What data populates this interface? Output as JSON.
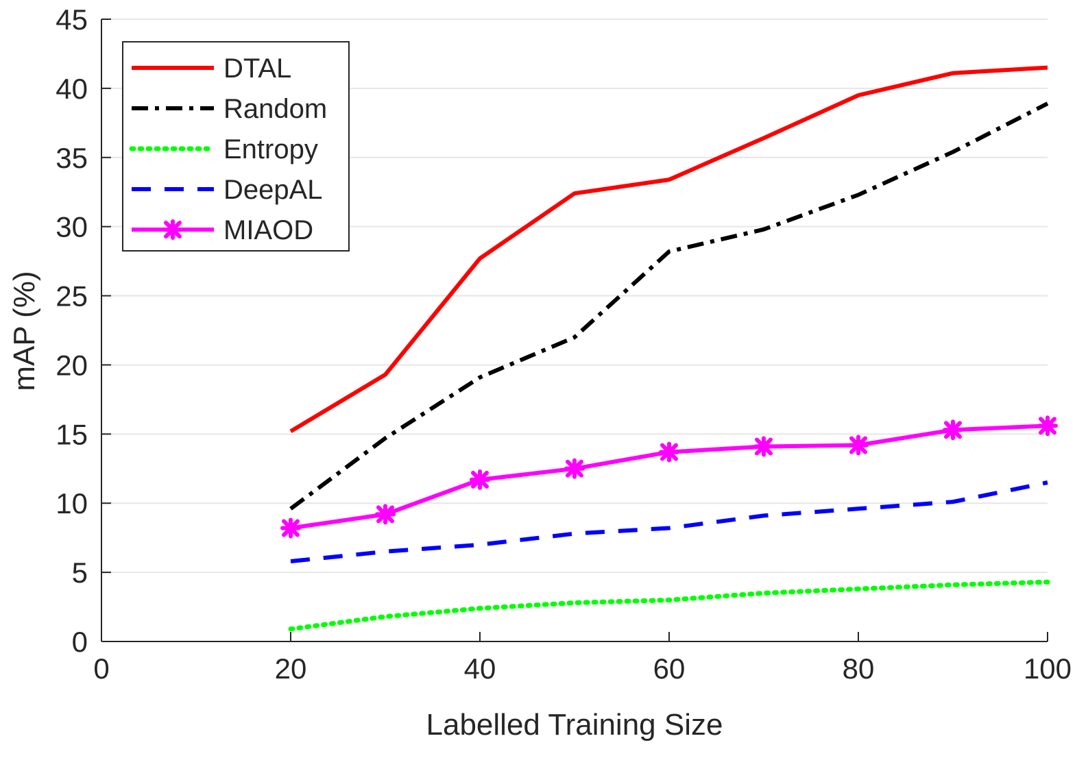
{
  "chart_data": {
    "type": "line",
    "title": "",
    "xlabel": "Labelled Training Size",
    "ylabel": "mAP (%)",
    "xlim": [
      0,
      100
    ],
    "ylim": [
      0,
      45
    ],
    "xticks": [
      0,
      20,
      40,
      60,
      80,
      100
    ],
    "yticks": [
      0,
      5,
      10,
      15,
      20,
      25,
      30,
      35,
      40,
      45
    ],
    "grid": "horizontal",
    "legend": "top-left",
    "x": [
      20,
      30,
      40,
      50,
      60,
      70,
      80,
      90,
      100
    ],
    "series": [
      {
        "name": "DTAL",
        "color": "#ff0000",
        "style": "solid",
        "marker": "none",
        "values": [
          15.2,
          19.3,
          27.7,
          32.4,
          33.4,
          36.4,
          39.5,
          41.1,
          41.5
        ]
      },
      {
        "name": "Random",
        "color": "#000000",
        "style": "dashdot",
        "marker": "none",
        "values": [
          9.6,
          14.7,
          19.1,
          22.0,
          28.2,
          29.8,
          32.3,
          35.4,
          38.9
        ]
      },
      {
        "name": "Entropy",
        "color": "#00ff00",
        "style": "dotted",
        "marker": "none",
        "values": [
          0.9,
          1.8,
          2.4,
          2.8,
          3.0,
          3.5,
          3.8,
          4.1,
          4.3
        ]
      },
      {
        "name": "DeepAL",
        "color": "#0000ff",
        "style": "dashed",
        "marker": "none",
        "values": [
          5.8,
          6.5,
          7.0,
          7.8,
          8.2,
          9.1,
          9.6,
          10.1,
          11.5
        ]
      },
      {
        "name": "MIAOD",
        "color": "#ff00ff",
        "style": "solid",
        "marker": "x-star",
        "values": [
          8.2,
          9.2,
          11.7,
          12.5,
          13.7,
          14.1,
          14.2,
          15.3,
          15.6
        ]
      }
    ]
  }
}
